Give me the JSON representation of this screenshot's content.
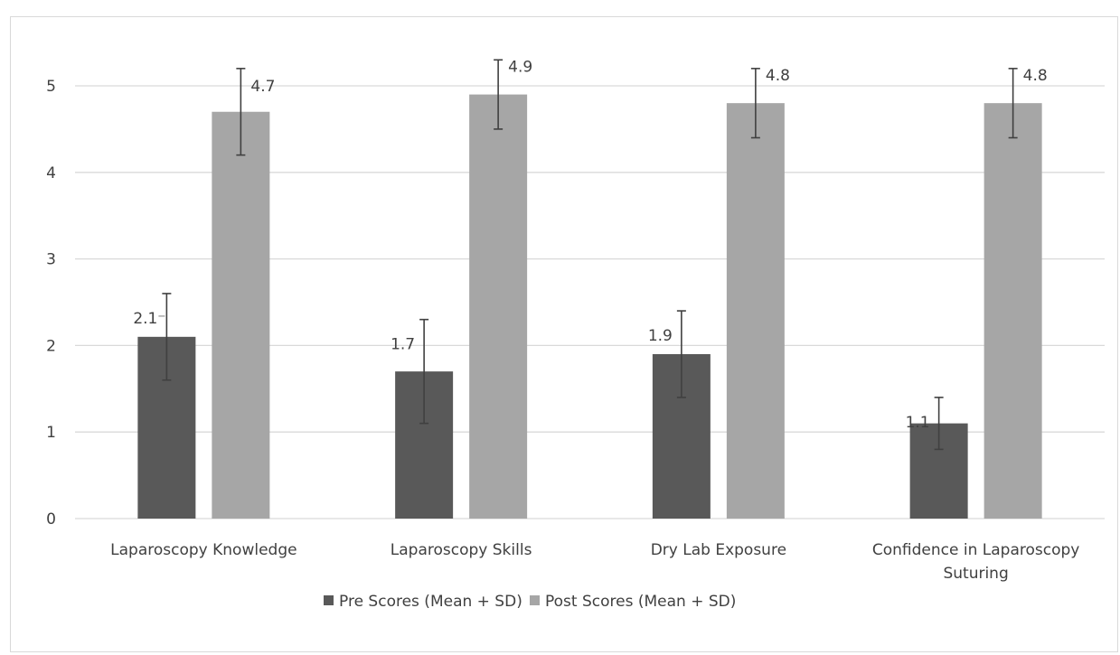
{
  "chart_data": {
    "type": "bar",
    "title": "",
    "xlabel": "",
    "ylabel": "",
    "ylim": [
      0,
      5
    ],
    "yticks": [
      0,
      1,
      2,
      3,
      4,
      5
    ],
    "grid": true,
    "legend_position": "bottom",
    "categories": [
      [
        "Laparoscopy Knowledge"
      ],
      [
        "Laparoscopy Skills"
      ],
      [
        "Dry Lab Exposure"
      ],
      [
        "Confidence in Laparoscopy",
        "Suturing"
      ]
    ],
    "series": [
      {
        "name": "Pre Scores (Mean + SD)",
        "color": "#595959",
        "values": [
          2.1,
          1.7,
          1.9,
          1.1
        ],
        "error_low": [
          1.6,
          1.1,
          1.4,
          0.8
        ],
        "error_high": [
          2.6,
          2.3,
          2.4,
          1.4
        ],
        "labels": [
          "2.1",
          "1.7",
          "1.9",
          "1.1"
        ]
      },
      {
        "name": "Post Scores (Mean + SD)",
        "color": "#a6a6a6",
        "values": [
          4.7,
          4.9,
          4.8,
          4.8
        ],
        "error_low": [
          4.2,
          4.5,
          4.4,
          4.4
        ],
        "error_high": [
          5.2,
          5.3,
          5.2,
          5.2
        ],
        "labels": [
          "4.7",
          "4.9",
          "4.8",
          "4.8"
        ]
      }
    ]
  }
}
